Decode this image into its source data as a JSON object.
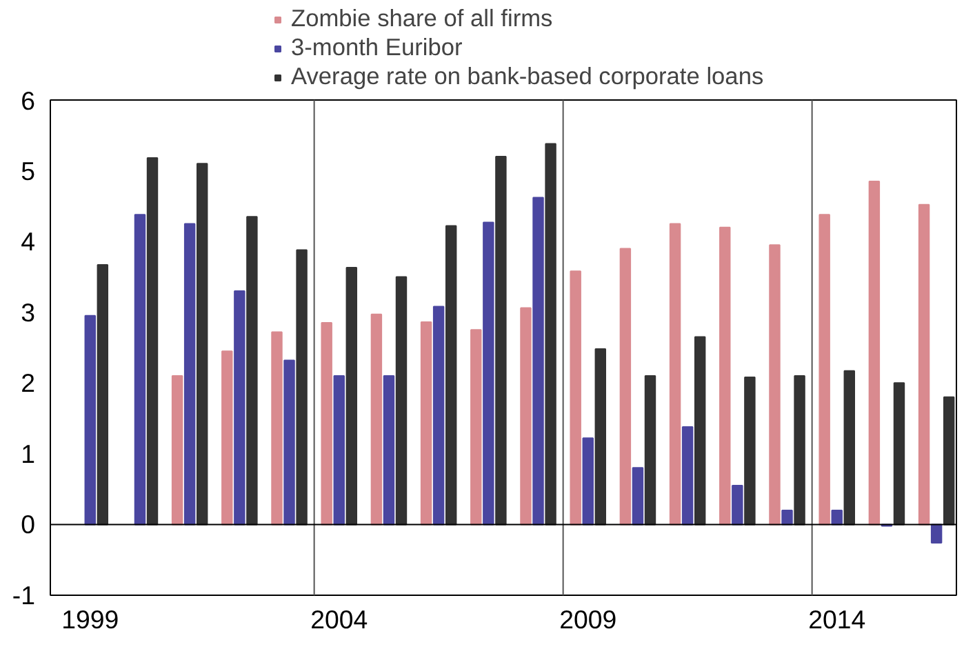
{
  "chart_data": {
    "type": "bar",
    "x": [
      1999,
      2000,
      2001,
      2002,
      2003,
      2004,
      2005,
      2006,
      2007,
      2008,
      2009,
      2010,
      2011,
      2012,
      2013,
      2014,
      2015,
      2016
    ],
    "series": [
      {
        "name": "Zombie share of all firms",
        "color": "#d98a8f",
        "values": [
          null,
          null,
          2.1,
          2.45,
          2.72,
          2.85,
          2.97,
          2.86,
          2.75,
          3.06,
          3.58,
          3.9,
          4.25,
          4.2,
          3.95,
          4.38,
          4.85,
          4.52
        ]
      },
      {
        "name": "3-month Euribor",
        "color": "#4a46a0",
        "values": [
          2.95,
          4.38,
          4.25,
          3.3,
          2.32,
          2.1,
          2.1,
          3.08,
          4.27,
          4.62,
          1.22,
          0.8,
          1.38,
          0.55,
          0.2,
          0.2,
          -0.02,
          -0.26
        ]
      },
      {
        "name": "Average rate on bank-based corporate loans",
        "color": "#333333",
        "values": [
          3.67,
          5.18,
          5.1,
          4.35,
          3.88,
          3.63,
          3.5,
          4.22,
          5.2,
          5.38,
          2.48,
          2.1,
          2.65,
          2.08,
          2.1,
          2.17,
          2.0,
          1.8
        ]
      }
    ],
    "xlim": [
      1998.2,
      2016.4
    ],
    "xticks": [
      1999,
      2004,
      2009,
      2014
    ],
    "ylim": [
      -1,
      6
    ],
    "yticks": [
      -1,
      0,
      1,
      2,
      3,
      4,
      5,
      6
    ],
    "ref_lines": [
      {
        "axis": "x",
        "value": 2003.5,
        "label": null,
        "color": "#555555"
      },
      {
        "axis": "x",
        "value": 2008.5,
        "label": null,
        "color": "#555555"
      },
      {
        "axis": "x",
        "value": 2013.5,
        "label": null,
        "color": "#555555"
      },
      {
        "axis": "y",
        "value": 0,
        "label": null,
        "color": "#000000"
      }
    ],
    "grid": false,
    "legend": "top"
  }
}
